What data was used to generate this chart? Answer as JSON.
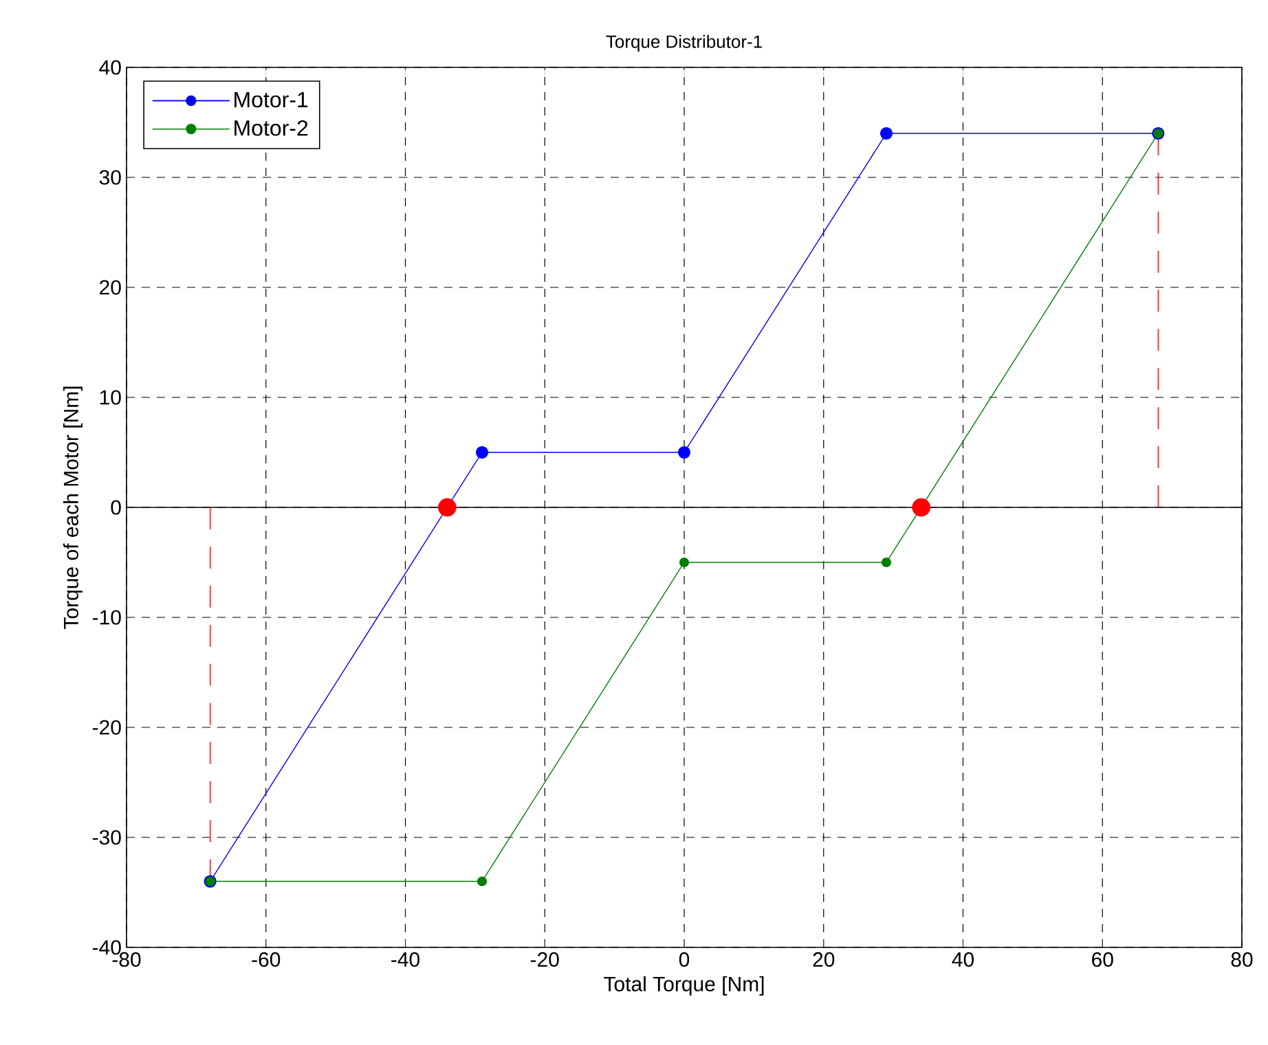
{
  "chart_data": {
    "type": "line",
    "title": "Torque Distributor-1",
    "xlabel": "Total Torque [Nm]",
    "ylabel": "Torque of each Motor [Nm]",
    "xlim": [
      -80,
      80
    ],
    "ylim": [
      -40,
      40
    ],
    "xticks": [
      -80,
      -60,
      -40,
      -20,
      0,
      20,
      40,
      60,
      80
    ],
    "yticks": [
      -40,
      -30,
      -20,
      -10,
      0,
      10,
      20,
      30,
      40
    ],
    "grid": true,
    "legend": "top left",
    "series": [
      {
        "name": "Motor-1",
        "color": "#0000ff",
        "marker": "circle",
        "x": [
          -68,
          -29,
          0,
          29,
          68
        ],
        "values": [
          -34,
          5,
          5,
          34,
          34
        ]
      },
      {
        "name": "Motor-2",
        "color": "#008000",
        "marker": "circle",
        "x": [
          -68,
          -29,
          0,
          29,
          68
        ],
        "values": [
          -34,
          -34,
          -5,
          -5,
          34
        ]
      },
      {
        "type": "line",
        "color": "#ff0000",
        "line_style": "dashed",
        "marker": "none",
        "x": [
          -68,
          -68
        ],
        "values": [
          -34,
          0
        ]
      },
      {
        "type": "line",
        "color": "#ff0000",
        "line_style": "dashed",
        "marker": "none",
        "x": [
          68,
          68
        ],
        "values": [
          0,
          34
        ]
      },
      {
        "type": "scatter",
        "color": "#ff0000",
        "marker": "circle",
        "x": [
          -34,
          34
        ],
        "values": [
          0,
          0
        ]
      }
    ],
    "ref_lines": [
      {
        "axis": "y",
        "value": 0,
        "color": "#000000",
        "line_style": "solid"
      }
    ]
  }
}
